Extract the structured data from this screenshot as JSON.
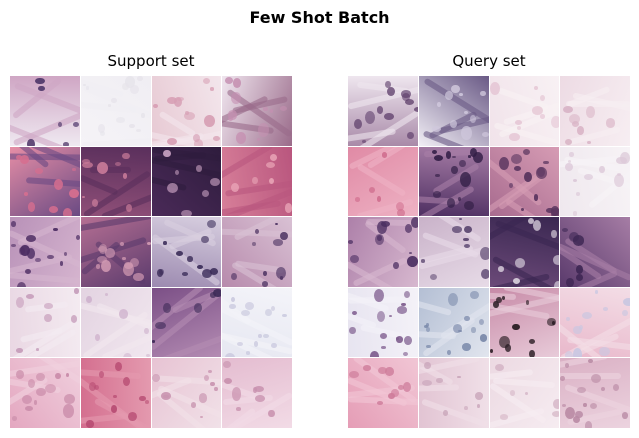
{
  "figure": {
    "title": "Few Shot Batch"
  },
  "panels": [
    {
      "label": "Support set",
      "tiles": [
        [
          "#efe9f1",
          "#4c3468",
          "#cfa6c4"
        ],
        [
          "#f5f3f7",
          "#e6e3ea",
          "#f0eef3"
        ],
        [
          "#e7c9d3",
          "#d79fb4",
          "#f3e6ec"
        ],
        [
          "#f0e6ef",
          "#c58fb1",
          "#9a6b8a"
        ],
        [
          "#e68ea6",
          "#d66e8f",
          "#6a4a83"
        ],
        [
          "#8f4f78",
          "#c77a98",
          "#5a2f5c"
        ],
        [
          "#4a2a58",
          "#c7a0c0",
          "#2e1c3d"
        ],
        [
          "#d77f99",
          "#e8a3b5",
          "#b9567e"
        ],
        [
          "#b891b8",
          "#4d2d63",
          "#d6b5cf"
        ],
        [
          "#b56f93",
          "#d29ab3",
          "#5b3b6d"
        ],
        [
          "#9c8ab0",
          "#3a2b58",
          "#d8cfe0"
        ],
        [
          "#b78aac",
          "#4e3463",
          "#d9c1d4"
        ],
        [
          "#e9d7e3",
          "#c49ab8",
          "#f4ebf1"
        ],
        [
          "#e3d3e1",
          "#cfb3cd",
          "#f1e7ef"
        ],
        [
          "#7b4f86",
          "#3d2a57",
          "#b48cb3"
        ],
        [
          "#e6e7f1",
          "#c9c8de",
          "#f4f4f9"
        ],
        [
          "#e4a7c0",
          "#c98ba9",
          "#f0d0de"
        ],
        [
          "#d46f8f",
          "#b84d73",
          "#e49aaf"
        ],
        [
          "#e7c3d3",
          "#c995b0",
          "#f1e1e8"
        ],
        [
          "#e4bcd0",
          "#c891ae",
          "#f2dbe6"
        ]
      ]
    },
    {
      "label": "Query set",
      "tiles": [
        [
          "#a98aa8",
          "#5b3b68",
          "#efe6ef"
        ],
        [
          "#f1eef5",
          "#cfc7dc",
          "#6a5a86"
        ],
        [
          "#f1e3ea",
          "#e5c5d4",
          "#f8f1f4"
        ],
        [
          "#eddbe4",
          "#d9b4c6",
          "#f7eef2"
        ],
        [
          "#e08aa5",
          "#d06f8f",
          "#eeb2c4"
        ],
        [
          "#4e2f62",
          "#321e46",
          "#a87ea7"
        ],
        [
          "#a86b8f",
          "#5a355f",
          "#d69cb4"
        ],
        [
          "#efe8ee",
          "#dcc8d8",
          "#f7f3f6"
        ],
        [
          "#ad80a9",
          "#4b2e61",
          "#d7b8cf"
        ],
        [
          "#c9b2c9",
          "#5a456f",
          "#e7dbe7"
        ],
        [
          "#6c4a79",
          "#d8cfdc",
          "#3a2751"
        ],
        [
          "#5a3a6c",
          "#3e2754",
          "#a67da5"
        ],
        [
          "#e7e4f0",
          "#7f5e8f",
          "#f4f2f8"
        ],
        [
          "#b4bfd4",
          "#7c8aab",
          "#e1e5ee"
        ],
        [
          "#c78aa7",
          "#2a1d24",
          "#e8cbd9"
        ],
        [
          "#e9b8cb",
          "#c9c7e1",
          "#f3dde6"
        ],
        [
          "#e59db6",
          "#cf7d9b",
          "#f1c6d5"
        ],
        [
          "#e2c4d3",
          "#c8a4b9",
          "#f0e0e8"
        ],
        [
          "#ecd9e2",
          "#d6b7c7",
          "#f6ecf1"
        ],
        [
          "#dab0c4",
          "#b98aa4",
          "#ecd3df"
        ]
      ]
    }
  ]
}
